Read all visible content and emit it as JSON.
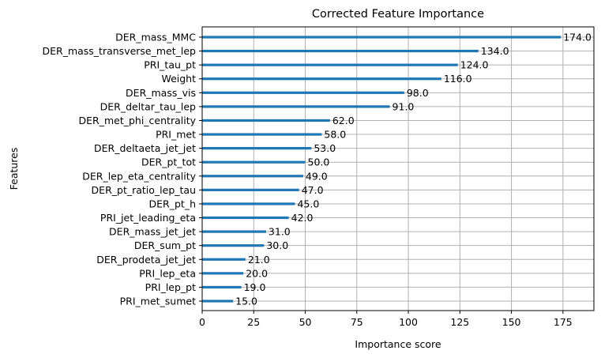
{
  "chart_data": {
    "type": "bar",
    "orientation": "horizontal",
    "title": "Corrected Feature Importance",
    "xlabel": "Importance score",
    "ylabel": "Features",
    "xlim": [
      0,
      190
    ],
    "xticks": [
      0,
      25,
      50,
      75,
      100,
      125,
      150,
      175
    ],
    "grid": true,
    "bar_color": "#1f77b4",
    "categories": [
      "DER_mass_MMC",
      "DER_mass_transverse_met_lep",
      "PRI_tau_pt",
      "Weight",
      "DER_mass_vis",
      "DER_deltar_tau_lep",
      "DER_met_phi_centrality",
      "PRI_met",
      "DER_deltaeta_jet_jet",
      "DER_pt_tot",
      "DER_lep_eta_centrality",
      "DER_pt_ratio_lep_tau",
      "DER_pt_h",
      "PRI_jet_leading_eta",
      "DER_mass_jet_jet",
      "DER_sum_pt",
      "DER_prodeta_jet_jet",
      "PRI_lep_eta",
      "PRI_lep_pt",
      "PRI_met_sumet"
    ],
    "values": [
      174.0,
      134.0,
      124.0,
      116.0,
      98.0,
      91.0,
      62.0,
      58.0,
      53.0,
      50.0,
      49.0,
      47.0,
      45.0,
      42.0,
      31.0,
      30.0,
      21.0,
      20.0,
      19.0,
      15.0
    ],
    "value_labels": [
      "174.0",
      "134.0",
      "124.0",
      "116.0",
      "98.0",
      "91.0",
      "62.0",
      "58.0",
      "53.0",
      "50.0",
      "49.0",
      "47.0",
      "45.0",
      "42.0",
      "31.0",
      "30.0",
      "21.0",
      "20.0",
      "19.0",
      "15.0"
    ]
  }
}
